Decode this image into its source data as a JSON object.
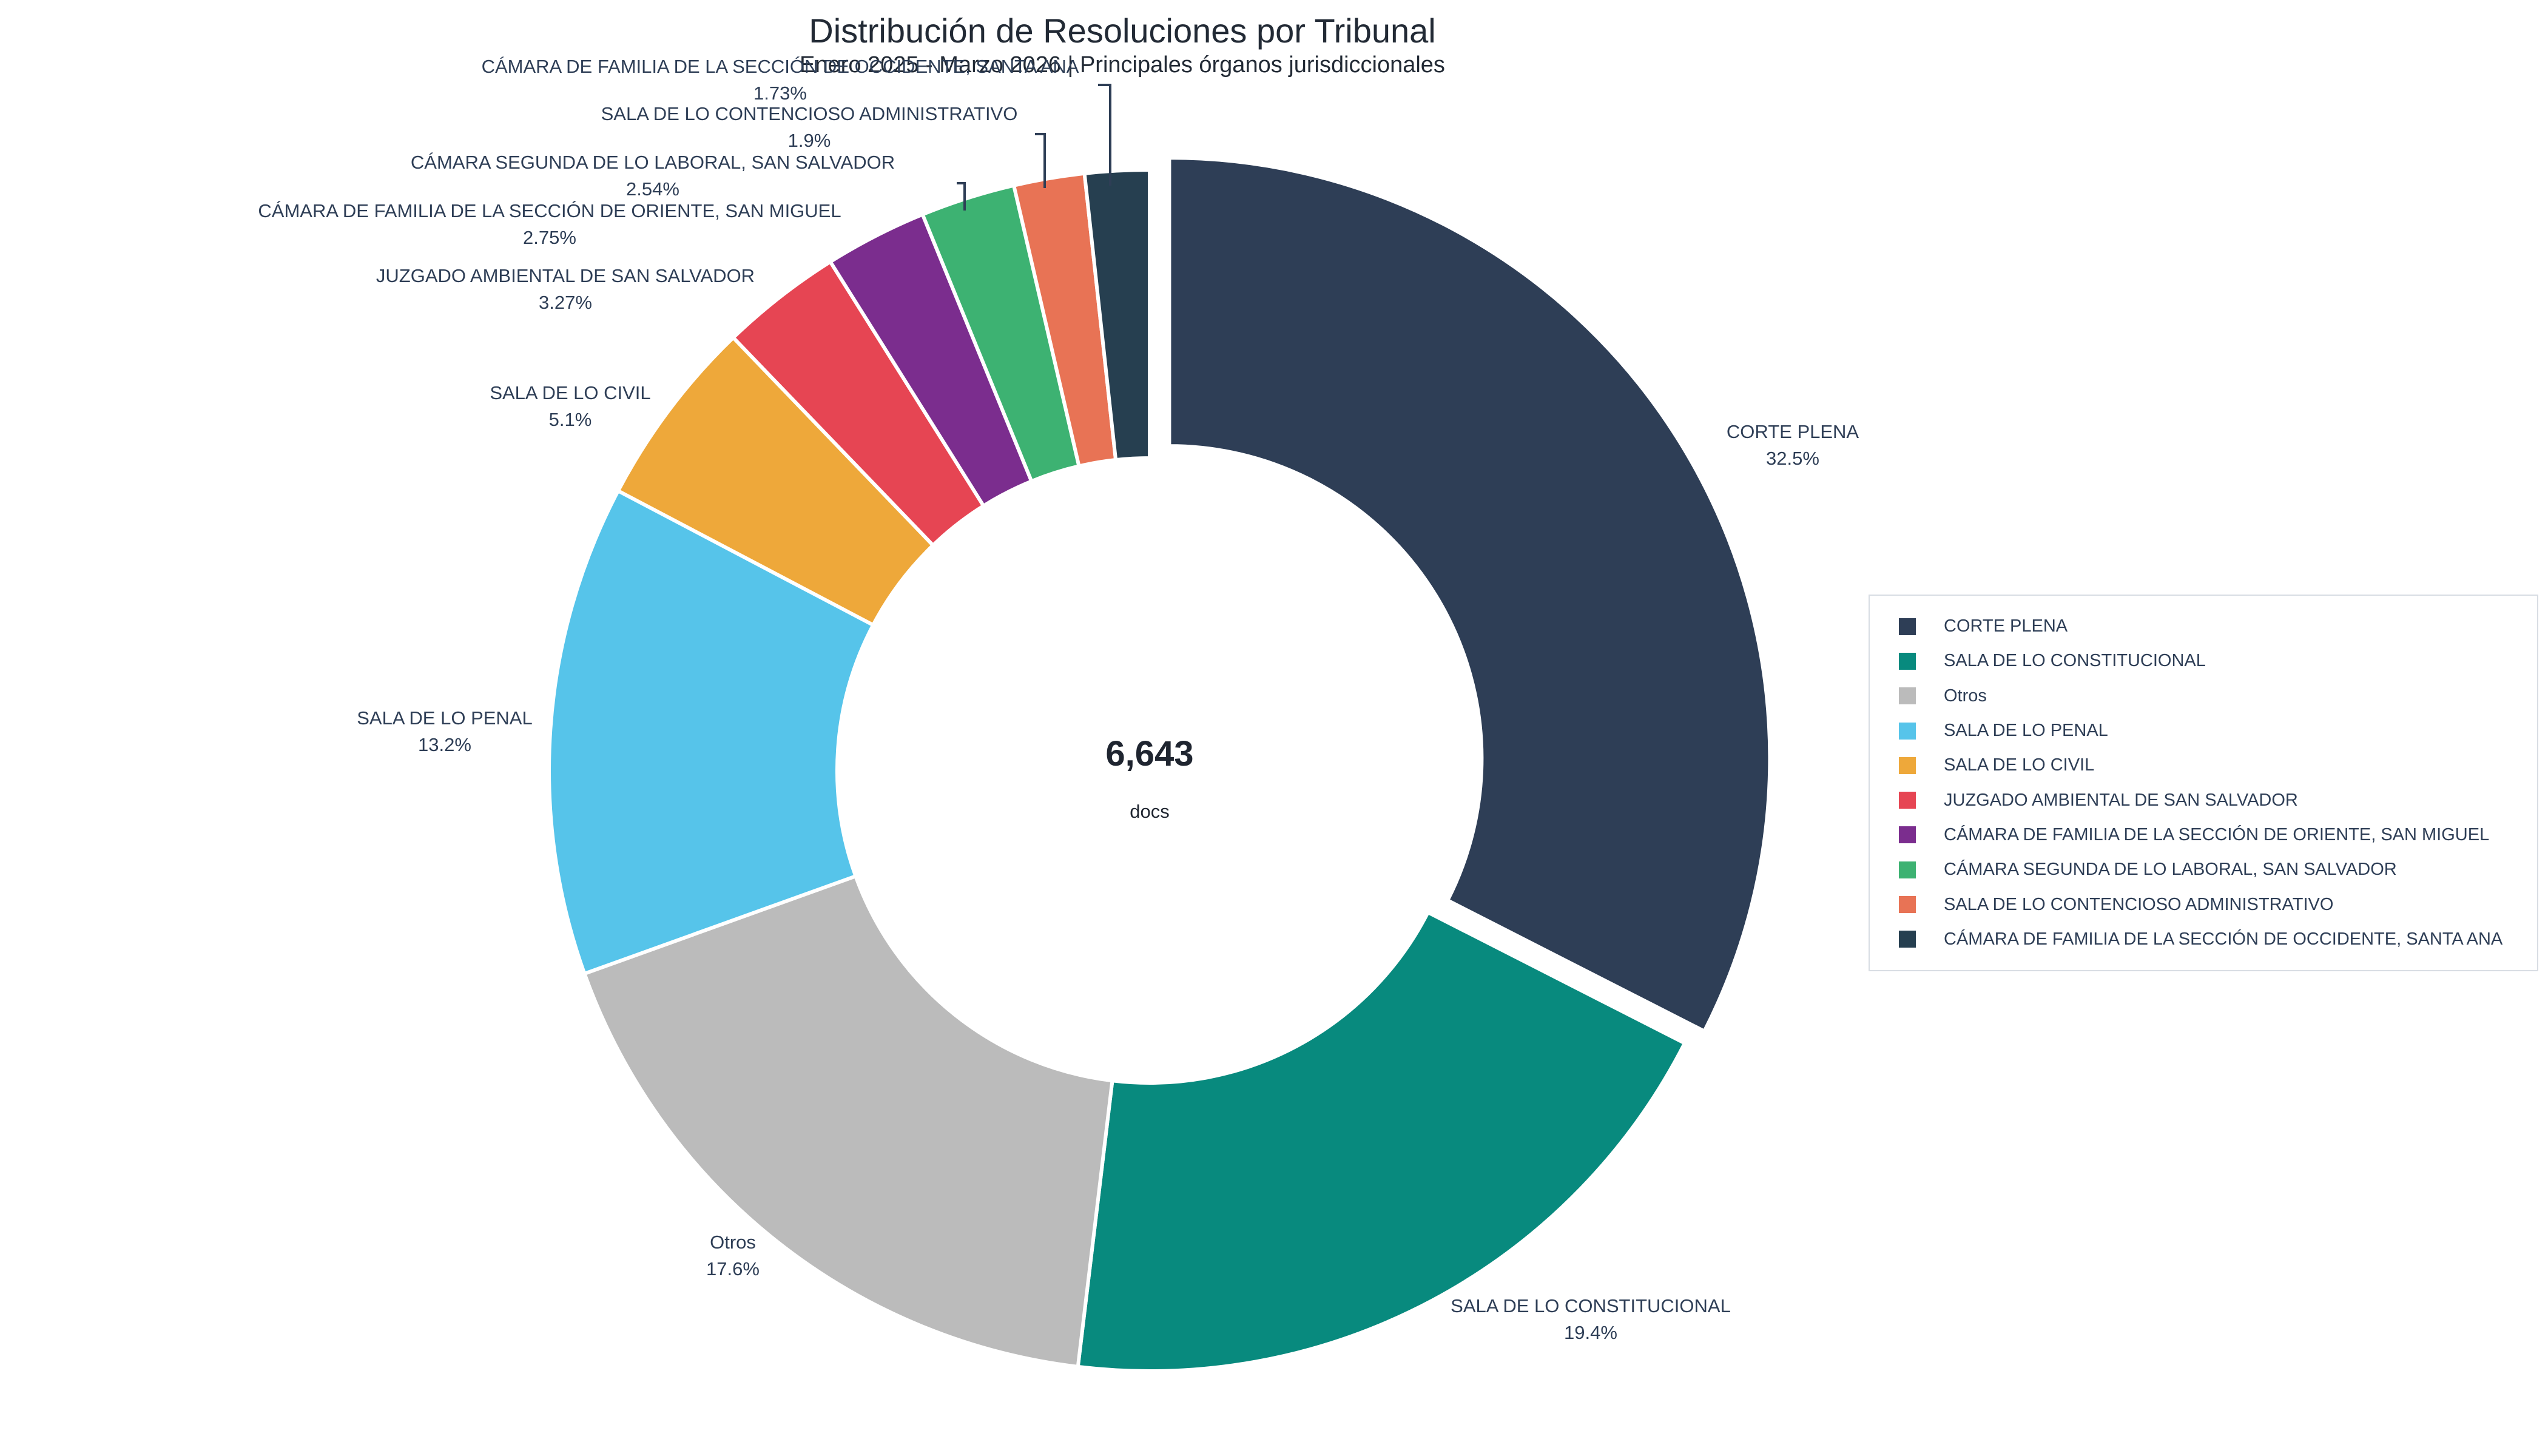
{
  "chart_data": {
    "type": "pie",
    "variant": "donut",
    "title": "Distribución de Resoluciones por Tribunal",
    "subtitle": "Enero 2025 - Marzo 2026 | Principales órganos jurisdiccionales",
    "center": {
      "value": "6,643",
      "label": "docs"
    },
    "total": 6643,
    "slices": [
      {
        "label": "CORTE PLENA",
        "percent": 32.5,
        "percent_label": "32.5%",
        "color": "#2e3e56",
        "pulled": true
      },
      {
        "label": "SALA DE LO CONSTITUCIONAL",
        "percent": 19.4,
        "percent_label": "19.4%",
        "color": "#088a7e",
        "pulled": false
      },
      {
        "label": "Otros",
        "percent": 17.6,
        "percent_label": "17.6%",
        "color": "#bbbbbb",
        "pulled": false
      },
      {
        "label": "SALA DE LO PENAL",
        "percent": 13.2,
        "percent_label": "13.2%",
        "color": "#56c4ea",
        "pulled": false
      },
      {
        "label": "SALA DE LO CIVIL",
        "percent": 5.1,
        "percent_label": "5.1%",
        "color": "#eea83a",
        "pulled": false
      },
      {
        "label": "JUZGADO AMBIENTAL DE SAN SALVADOR",
        "percent": 3.27,
        "percent_label": "3.27%",
        "color": "#e64553",
        "pulled": false
      },
      {
        "label": "CÁMARA DE FAMILIA DE LA SECCIÓN DE ORIENTE, SAN MIGUEL",
        "percent": 2.75,
        "percent_label": "2.75%",
        "color": "#7b2d8e",
        "pulled": false
      },
      {
        "label": "CÁMARA SEGUNDA DE LO LABORAL, SAN SALVADOR",
        "percent": 2.54,
        "percent_label": "2.54%",
        "color": "#3db272",
        "pulled": false
      },
      {
        "label": "SALA DE LO CONTENCIOSO ADMINISTRATIVO",
        "percent": 1.9,
        "percent_label": "1.9%",
        "color": "#e87355",
        "pulled": false
      },
      {
        "label": "CÁMARA DE FAMILIA DE LA SECCIÓN DE OCCIDENTE, SANTA ANA",
        "percent": 1.73,
        "percent_label": "1.73%",
        "color": "#263f50",
        "pulled": false
      }
    ],
    "legend": {
      "position": "right",
      "items": [
        "CORTE PLENA",
        "SALA DE LO CONSTITUCIONAL",
        "Otros",
        "SALA DE LO PENAL",
        "SALA DE LO CIVIL",
        "JUZGADO AMBIENTAL DE SAN SALVADOR",
        "CÁMARA DE FAMILIA DE LA SECCIÓN DE ORIENTE, SAN MIGUEL",
        "CÁMARA SEGUNDA DE LO LABORAL, SAN SALVADOR",
        "SALA DE LO CONTENCIOSO ADMINISTRATIVO",
        "CÁMARA DE FAMILIA DE LA SECCIÓN DE OCCIDENTE, SANTA ANA"
      ]
    }
  }
}
